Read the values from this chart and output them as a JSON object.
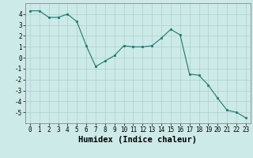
{
  "x": [
    0,
    1,
    2,
    3,
    4,
    5,
    6,
    7,
    8,
    9,
    10,
    11,
    12,
    13,
    14,
    15,
    16,
    17,
    18,
    19,
    20,
    21,
    22,
    23
  ],
  "y": [
    4.3,
    4.3,
    3.7,
    3.7,
    4.0,
    3.3,
    1.1,
    -0.8,
    -0.3,
    0.2,
    1.1,
    1.0,
    1.0,
    1.1,
    1.8,
    2.6,
    2.1,
    -1.5,
    -1.6,
    -2.5,
    -3.7,
    -4.8,
    -5.0,
    -5.5
  ],
  "line_color": "#1a7a6e",
  "marker": "s",
  "marker_size": 2.0,
  "bg_color": "#cceae7",
  "grid_color": "#b0cece",
  "xlabel": "Humidex (Indice chaleur)",
  "xlim": [
    -0.5,
    23.5
  ],
  "ylim": [
    -6,
    5
  ],
  "yticks": [
    -5,
    -4,
    -3,
    -2,
    -1,
    0,
    1,
    2,
    3,
    4
  ],
  "xticks": [
    0,
    1,
    2,
    3,
    4,
    5,
    6,
    7,
    8,
    9,
    10,
    11,
    12,
    13,
    14,
    15,
    16,
    17,
    18,
    19,
    20,
    21,
    22,
    23
  ],
  "tick_fontsize": 5.5,
  "xlabel_fontsize": 7.5
}
